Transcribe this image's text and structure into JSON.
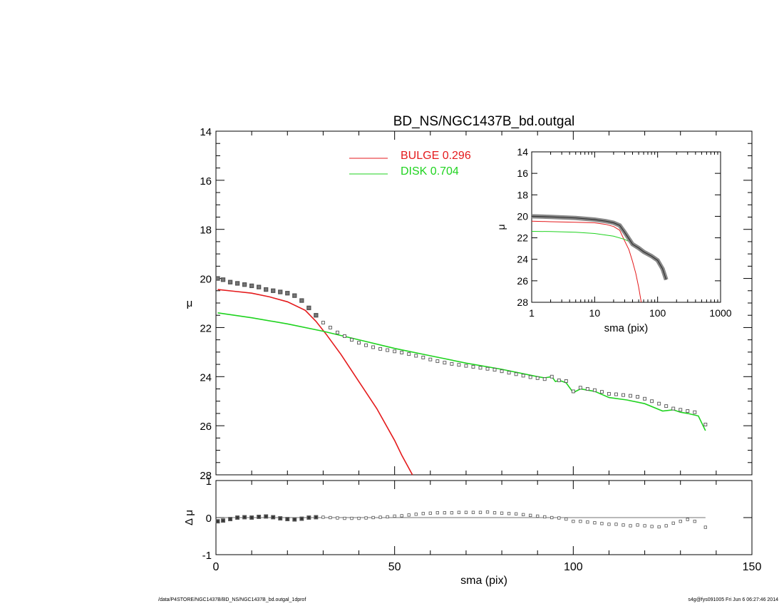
{
  "chart_data": {
    "title": "BD_NS/NGC1437B_bd.outgal",
    "main": {
      "type": "line",
      "xlim": [
        0,
        150
      ],
      "ylim": [
        28,
        14
      ],
      "ylabel": "μ",
      "yticks": [
        14,
        16,
        18,
        20,
        22,
        24,
        26,
        28
      ],
      "legend": [
        {
          "label": "BULGE  0.296",
          "color": "#e41a1c"
        },
        {
          "label": "DISK  0.704",
          "color": "#1fd31f"
        }
      ],
      "series": [
        {
          "name": "BULGE",
          "color": "#e41a1c",
          "x": [
            0.5,
            5,
            10,
            15,
            20,
            25,
            28,
            31,
            35,
            40,
            45,
            50,
            52,
            55
          ],
          "y": [
            20.45,
            20.52,
            20.6,
            20.75,
            20.95,
            21.3,
            21.75,
            22.3,
            23.1,
            24.2,
            25.3,
            26.6,
            27.2,
            28.0
          ]
        },
        {
          "name": "DISK",
          "color": "#1fd31f",
          "x": [
            0.5,
            10,
            20,
            30,
            40,
            50,
            60,
            70,
            80,
            90,
            92,
            94,
            95,
            96,
            98,
            100,
            102,
            104,
            106,
            110,
            115,
            120,
            125,
            128,
            130,
            132,
            135,
            137
          ],
          "y": [
            21.4,
            21.6,
            21.85,
            22.15,
            22.5,
            22.85,
            23.15,
            23.45,
            23.7,
            24.0,
            24.05,
            24.0,
            24.2,
            24.15,
            24.25,
            24.65,
            24.5,
            24.55,
            24.6,
            24.85,
            24.95,
            25.1,
            25.4,
            25.35,
            25.45,
            25.5,
            25.6,
            26.2
          ]
        }
      ],
      "data_points": {
        "x": [
          0.5,
          2,
          4,
          6,
          8,
          10,
          12,
          14,
          16,
          18,
          20,
          22,
          24,
          26,
          28,
          30,
          32,
          34,
          36,
          38,
          40,
          42,
          44,
          46,
          48,
          50,
          52,
          54,
          56,
          58,
          60,
          62,
          64,
          66,
          68,
          70,
          72,
          74,
          76,
          78,
          80,
          82,
          84,
          86,
          88,
          90,
          92,
          94,
          96,
          98,
          100,
          102,
          104,
          106,
          108,
          110,
          112,
          114,
          116,
          118,
          120,
          122,
          124,
          126,
          128,
          130,
          132,
          134,
          137
        ],
        "y": [
          20.0,
          20.05,
          20.15,
          20.2,
          20.25,
          20.3,
          20.35,
          20.45,
          20.5,
          20.55,
          20.6,
          20.7,
          20.9,
          21.2,
          21.5,
          21.8,
          22.0,
          22.2,
          22.35,
          22.5,
          22.62,
          22.72,
          22.8,
          22.87,
          22.92,
          22.97,
          23.02,
          23.08,
          23.15,
          23.22,
          23.3,
          23.37,
          23.43,
          23.48,
          23.52,
          23.56,
          23.6,
          23.64,
          23.68,
          23.72,
          23.78,
          23.84,
          23.9,
          23.96,
          24.02,
          24.06,
          24.1,
          24.0,
          24.15,
          24.18,
          24.6,
          24.45,
          24.5,
          24.55,
          24.62,
          24.7,
          24.72,
          24.75,
          24.78,
          24.82,
          24.9,
          25.0,
          25.1,
          25.2,
          25.3,
          25.35,
          25.4,
          25.45,
          25.95
        ]
      }
    },
    "residual": {
      "type": "scatter",
      "xlim": [
        0,
        150
      ],
      "ylim": [
        -1,
        1
      ],
      "xlabel": "sma (pix)",
      "ylabel": "Δ μ",
      "xticks": [
        0,
        50,
        100,
        150
      ],
      "yticks": [
        -1,
        0,
        1
      ],
      "zero_line": {
        "x": [
          0,
          137
        ],
        "y": 0
      },
      "x": [
        0.5,
        2,
        4,
        6,
        8,
        10,
        12,
        14,
        16,
        18,
        20,
        22,
        24,
        26,
        28,
        30,
        32,
        34,
        36,
        38,
        40,
        42,
        44,
        46,
        48,
        50,
        52,
        54,
        56,
        58,
        60,
        62,
        64,
        66,
        68,
        70,
        72,
        74,
        76,
        78,
        80,
        82,
        84,
        86,
        88,
        90,
        92,
        94,
        96,
        98,
        100,
        102,
        104,
        106,
        108,
        110,
        112,
        114,
        116,
        118,
        120,
        122,
        124,
        126,
        128,
        130,
        132,
        134,
        137
      ],
      "y": [
        -0.1,
        -0.08,
        -0.04,
        0.0,
        0.01,
        0.0,
        0.02,
        0.03,
        0.01,
        -0.02,
        -0.04,
        -0.05,
        -0.03,
        0.0,
        0.01,
        0.01,
        0.0,
        -0.01,
        -0.02,
        -0.02,
        -0.02,
        -0.01,
        0.0,
        0.01,
        0.02,
        0.04,
        0.05,
        0.07,
        0.09,
        0.11,
        0.12,
        0.13,
        0.13,
        0.13,
        0.14,
        0.14,
        0.14,
        0.14,
        0.15,
        0.13,
        0.12,
        0.11,
        0.1,
        0.08,
        0.06,
        0.04,
        0.02,
        0.0,
        -0.01,
        -0.04,
        -0.1,
        -0.1,
        -0.12,
        -0.14,
        -0.16,
        -0.18,
        -0.18,
        -0.2,
        -0.22,
        -0.2,
        -0.22,
        -0.24,
        -0.25,
        -0.22,
        -0.15,
        -0.1,
        -0.05,
        -0.1,
        -0.26
      ]
    },
    "inset": {
      "type": "line",
      "xscale": "log",
      "xlim": [
        1,
        1000
      ],
      "ylim": [
        28,
        14
      ],
      "xlabel": "sma (pix)",
      "ylabel": "μ",
      "xticks": [
        1,
        10,
        100,
        1000
      ],
      "yticks": [
        14,
        16,
        18,
        20,
        22,
        24,
        26,
        28
      ],
      "series": [
        {
          "name": "BULGE",
          "color": "#e41a1c",
          "x": [
            1,
            2,
            5,
            10,
            15,
            20,
            25,
            30,
            35,
            40,
            45,
            50,
            55
          ],
          "y": [
            20.45,
            20.5,
            20.55,
            20.6,
            20.75,
            20.95,
            21.3,
            22.3,
            23.1,
            24.2,
            25.3,
            26.6,
            28.0
          ]
        },
        {
          "name": "DISK",
          "color": "#1fd31f",
          "x": [
            1,
            2,
            5,
            10,
            20,
            30,
            40
          ],
          "y": [
            21.4,
            21.42,
            21.48,
            21.6,
            21.85,
            22.15,
            22.5
          ]
        },
        {
          "name": "",
          "color": "#555555",
          "x": [
            1,
            2,
            5,
            10,
            15,
            20,
            25,
            30,
            40,
            50,
            60,
            80,
            100,
            120,
            137
          ],
          "y": [
            20.0,
            20.05,
            20.15,
            20.3,
            20.45,
            20.6,
            20.85,
            21.5,
            22.6,
            22.95,
            23.3,
            23.7,
            24.1,
            24.9,
            25.9
          ]
        }
      ]
    }
  },
  "footer": {
    "left": "/data/P4STORE/NGC1437B/BD_NS/NGC1437B_bd.outgal_1dprof",
    "right": "s4g@fys091005  Fri Jun  6 06:27:46 2014"
  }
}
